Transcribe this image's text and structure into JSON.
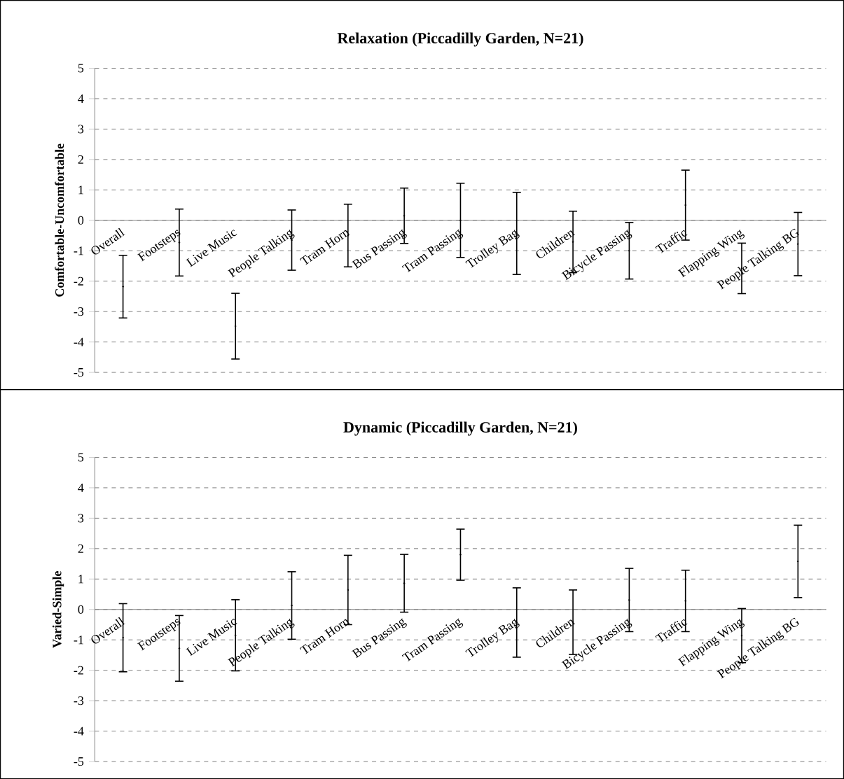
{
  "chart_data": [
    {
      "type": "scatter",
      "title": "Relaxation (Piccadilly Garden, N=21)",
      "ylabel": "Comfortable-Uncomfortable",
      "categories": [
        "Overall",
        "Footsteps",
        "Live Music",
        "People Talking",
        "Tram Horn",
        "Bus Passing",
        "Tram Passing",
        "Trolley Bag",
        "Children",
        "Bicycle Passing",
        "Traffic",
        "Flapping Wing",
        "People Talking BG"
      ],
      "values": [
        -2.18,
        -0.73,
        -3.48,
        -0.65,
        -0.5,
        0.15,
        0,
        -0.43,
        -0.71,
        -1.0,
        0.5,
        -1.58,
        -0.78
      ],
      "errors": [
        1.03,
        1.1,
        1.08,
        0.99,
        1.03,
        0.91,
        1.22,
        1.35,
        1.01,
        0.93,
        1.15,
        0.83,
        1.04
      ],
      "color": "#000000",
      "grid": "y",
      "ylim": [
        -5,
        5
      ],
      "yticks": [
        -5,
        -4,
        -3,
        -2,
        -1,
        0,
        1,
        2,
        3,
        4,
        5
      ]
    },
    {
      "type": "scatter",
      "title": "Dynamic (Piccadilly Garden, N=21)",
      "ylabel": "Varied-Simple",
      "categories": [
        "Overall",
        "Footsteps",
        "Live Music",
        "People Talking",
        "Tram Horn",
        "Bus Passing",
        "Tram Passing",
        "Trolley Bag",
        "Children",
        "Bicycle Passing",
        "Traffic",
        "Flapping Wing",
        "People Talking BG"
      ],
      "values": [
        -0.93,
        -1.28,
        -0.85,
        0.13,
        0.64,
        0.86,
        1.8,
        -0.43,
        -0.42,
        0.31,
        0.28,
        -0.86,
        1.58
      ],
      "errors": [
        1.12,
        1.08,
        1.17,
        1.11,
        1.14,
        0.95,
        0.84,
        1.14,
        1.06,
        1.04,
        1.01,
        0.89,
        1.19
      ],
      "color": "#000000",
      "grid": "y",
      "ylim": [
        -5,
        5
      ],
      "yticks": [
        -5,
        -4,
        -3,
        -2,
        -1,
        0,
        1,
        2,
        3,
        4,
        5
      ]
    }
  ]
}
